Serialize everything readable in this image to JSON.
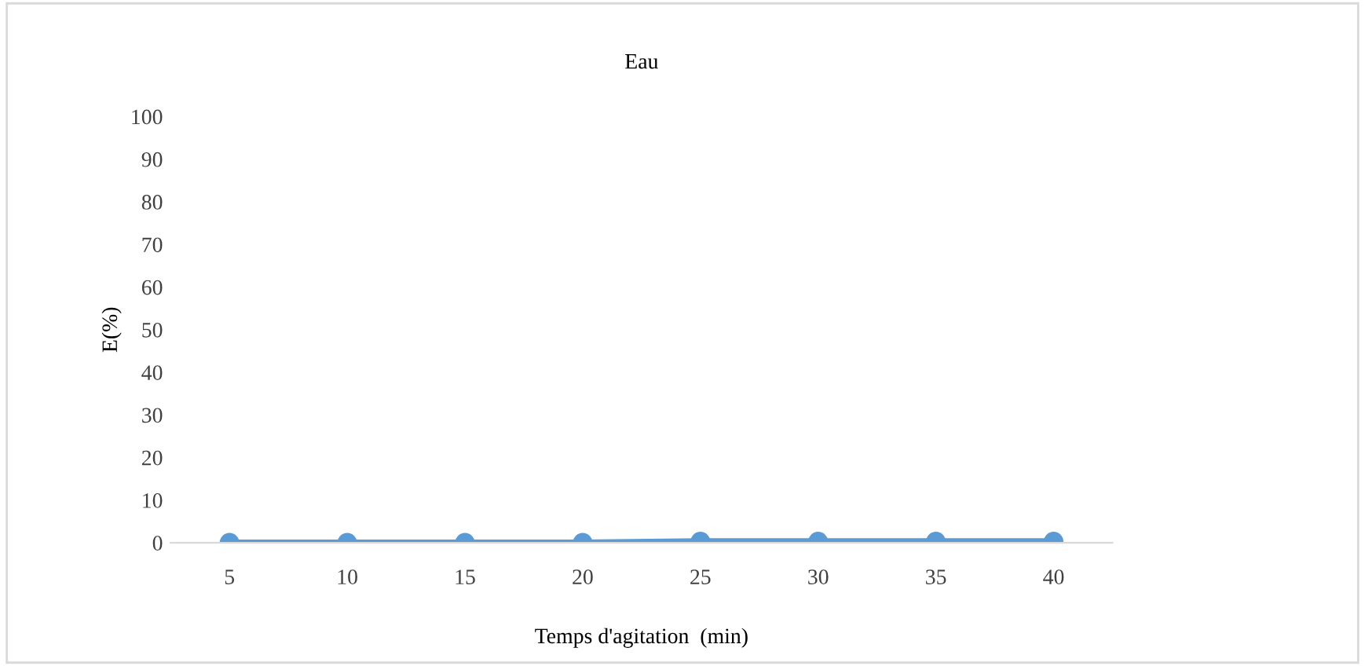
{
  "chart_data": {
    "type": "line",
    "title": "Eau",
    "xlabel": "Temps d'agitation  (min)",
    "ylabel": "E(%)",
    "categories": [
      "5",
      "10",
      "15",
      "20",
      "25",
      "30",
      "35",
      "40"
    ],
    "series": [
      {
        "color": "#5b9bd5",
        "values": [
          0,
          0,
          0,
          0,
          0.3,
          0.3,
          0.3,
          0.3
        ]
      }
    ],
    "ylim": [
      0,
      100
    ],
    "yticks": [
      0,
      10,
      20,
      30,
      40,
      50,
      60,
      70,
      80,
      90,
      100
    ],
    "marker": "circle",
    "line_style": "solid",
    "grid": false,
    "legend": false
  }
}
